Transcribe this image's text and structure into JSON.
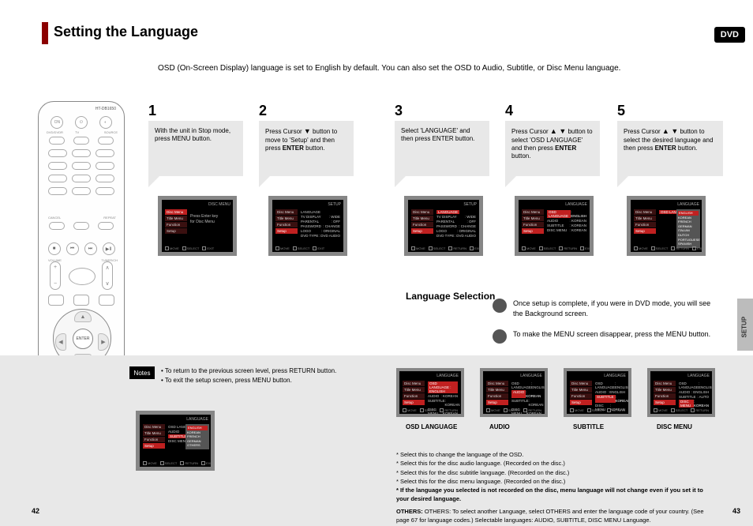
{
  "pageTitle": "Setting the Language",
  "badge": "DVD",
  "intro": "OSD (On-Screen Display) language is set to English by default. You can also set the OSD to Audio, Subtitle, or Disc Menu language.",
  "remote": {
    "topLabel": "HT-DB1650"
  },
  "steps": {
    "s1": {
      "num": "1",
      "text": "With the unit in Stop mode, press MENU button."
    },
    "s2": {
      "num": "2",
      "text": "Press Cursor      button to move to 'Setup' and then press ENTER button."
    },
    "s2arrow": "▼",
    "s3": {
      "num": "3",
      "text": "Select 'LANGUAGE' and then press ENTER button."
    },
    "s4": {
      "num": "4",
      "text": "Press Cursor         button to select 'OSD LANGUAGE' and then press ENTER button."
    },
    "s4arrow": "▲ ▼",
    "s5": {
      "num": "5",
      "text": "Press Cursor         button to select the desired language and then press ENTER button."
    },
    "s5arrow": "▲ ▼"
  },
  "sideItems": {
    "discMenu": "Disc Menu",
    "titleMenu": "Title Menu",
    "function": "Function",
    "setup": "Setup"
  },
  "screen1": {
    "topRight": "DISC MENU",
    "msg1": "Press Enter key",
    "msg2": "for Disc Menu"
  },
  "screen2": {
    "topRight": "SETUP",
    "rows": [
      {
        "k": "LANGUAGE",
        "v": ""
      },
      {
        "k": "TV   DISPLAY",
        "v": ": WIDE"
      },
      {
        "k": "PARENTAL",
        "v": ": OFF"
      },
      {
        "k": "PASSWORD",
        "v": ": CHANGE"
      },
      {
        "k": "LOGO",
        "v": ": ORIGINAL"
      },
      {
        "k": "DVD TYPE",
        "v": ": DVD AUDIO"
      }
    ]
  },
  "screen3": {
    "topRight": "SETUP"
  },
  "screen4": {
    "topRight": "LANGUAGE",
    "rows": [
      {
        "k": "OSD LANGUAGE",
        "v": ": ENGLISH"
      },
      {
        "k": "AUDIO",
        "v": ": KOREAN"
      },
      {
        "k": "SUBTITLE",
        "v": ": KOREAN"
      },
      {
        "k": "DISC MENU",
        "v": ": KOREAN"
      }
    ]
  },
  "screen5": {
    "topRight": "LANGUAGE",
    "submenu": [
      "ENGLISH",
      "KOREAN",
      "FRENCH",
      "GERMAN",
      "ITALIAN",
      "DUTCH",
      "PORTUGUESE",
      "SPANISH"
    ]
  },
  "footLabels": {
    "move": "MOVE",
    "select": "SELECT",
    "ret": "RETURN",
    "exit": "EXIT"
  },
  "languageSelection": "Language Selection",
  "bullet1": "Once setup is complete, if you were in DVD mode, you will see the Background screen.",
  "bullet2": "To make the MENU screen disappear, press the MENU button.",
  "notesLabel": "Notes",
  "note1": "• To return to the previous screen level, press RETURN button.",
  "note2": "• To exit the setup screen, press MENU button.",
  "screenNote": {
    "topRight": "LANGUAGE",
    "rows": [
      {
        "k": "OSD LANGUAGE",
        "v": ""
      },
      {
        "k": "AUDIO",
        "v": ""
      },
      {
        "k": "SUBTITLE",
        "v": "ENGLISH"
      },
      {
        "k": "DISC MENU",
        "v": "KOREAN"
      }
    ],
    "submenu": [
      "ENGLISH",
      "KOREAN",
      "FRENCH",
      "GERMAN",
      "OTHERS"
    ]
  },
  "captions": {
    "b1": "OSD LANGUAGE",
    "b2": "AUDIO",
    "b3": "SUBTITLE",
    "b4": "DISC MENU"
  },
  "lowerScreens": {
    "b1": {
      "topLeft": "OSD LANGUAGE : ENGLISH",
      "rows": [
        {
          "k": "AUDIO",
          "v": ": KOREAN"
        },
        {
          "k": "SUBTITLE",
          "v": ": KOREAN"
        },
        {
          "k": "DISC MENU",
          "v": ": KOREAN"
        }
      ]
    },
    "b2": {
      "rows": [
        {
          "k": "OSD LANGUAGE",
          "v": ": ENGLISH"
        },
        {
          "k": "AUDIO",
          "v": ": KOREAN",
          "sel": true
        },
        {
          "k": "SUBTITLE",
          "v": ": KOREAN"
        },
        {
          "k": "DISC MENU",
          "v": ": KOREAN"
        }
      ]
    },
    "b3": {
      "rows": [
        {
          "k": "OSD LANGUAGE",
          "v": ": ENGLISH"
        },
        {
          "k": "AUDIO",
          "v": ": ENGLISH"
        },
        {
          "k": "SUBTITLE",
          "v": ": KOREAN",
          "sel": true
        },
        {
          "k": "DISC MENU",
          "v": ": KOREAN"
        }
      ]
    },
    "b4": {
      "rows": [
        {
          "k": "OSD LANGUAGE",
          "v": ": ENGLISH"
        },
        {
          "k": "AUDIO",
          "v": ": ENGLISH"
        },
        {
          "k": "SUBTITLE",
          "v": ": AUTO"
        },
        {
          "k": "DISC MENU",
          "v": ": KOREAN",
          "sel": true
        }
      ]
    }
  },
  "longNote": {
    "l1": "* Select this to change the language of the OSD.",
    "l2": "* Select this for the disc audio language. (Recorded on the disc.)",
    "l3": "* Select this for the disc subtitle language. (Recorded on the disc.)",
    "l4": "* Select this for the disc menu language. (Recorded on the disc.)",
    "star": "* If the language you selected is not recorded on the disc, menu language will not change even if you set it to your desired language.",
    "others": "OTHERS: To select another Language, select OTHERS and enter the language code of your country. (See page 67 for language codes.) Selectable languages: AUDIO, SUBTITLE, DISC MENU Language."
  },
  "sideTab": "SETUP",
  "pageL": "42",
  "pageR": "43"
}
